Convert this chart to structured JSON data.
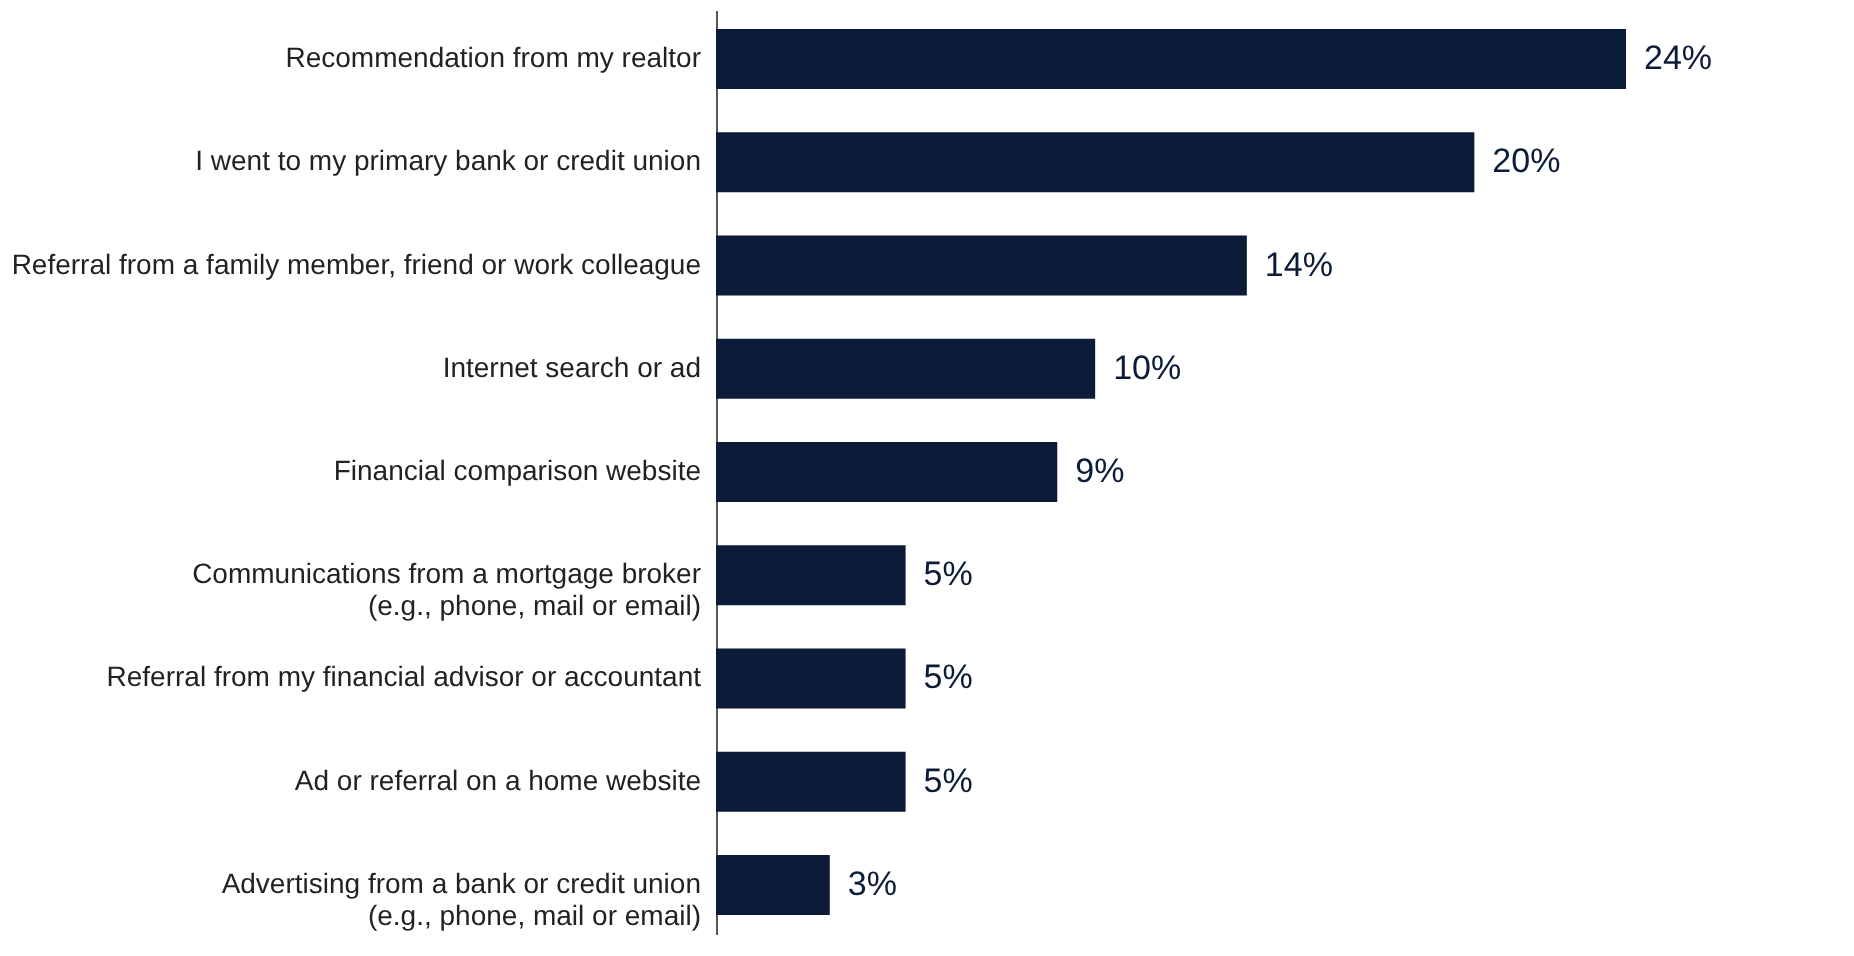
{
  "chart_data": {
    "type": "bar",
    "orientation": "horizontal",
    "categories": [
      "Recommendation from my realtor",
      "I went to my primary bank or credit union",
      "Referral from a family member, friend or work colleague",
      "Internet search or ad",
      "Financial comparison website",
      "Communications from a mortgage broker\n(e.g., phone, mail or email)",
      "Referral from my financial advisor or accountant",
      "Ad or referral on a home website",
      "Advertising from a bank or credit union\n(e.g., phone, mail or email)"
    ],
    "values": [
      24,
      20,
      14,
      10,
      9,
      5,
      5,
      5,
      3
    ],
    "value_labels": [
      "24%",
      "20%",
      "14%",
      "10%",
      "9%",
      "5%",
      "5%",
      "5%",
      "3%"
    ],
    "color": "#0b1b38",
    "grid": false
  }
}
